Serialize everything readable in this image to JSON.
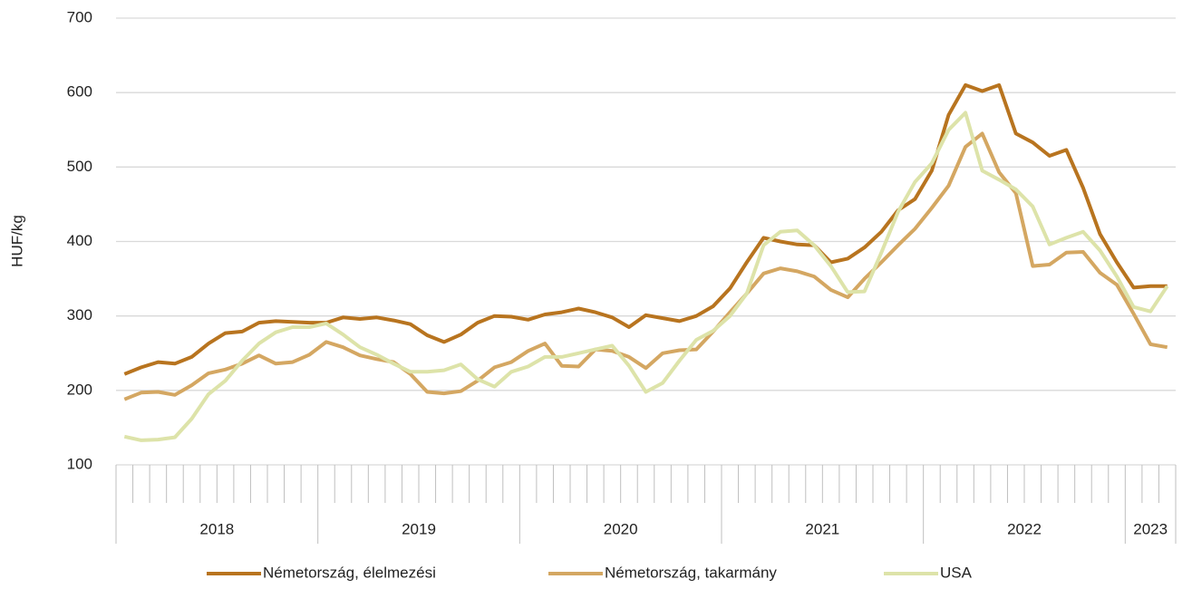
{
  "chart_data": {
    "type": "line",
    "y_label": "HUF/kg",
    "categories": [
      "2018",
      null,
      null,
      null,
      null,
      null,
      null,
      null,
      null,
      null,
      null,
      null,
      "2019",
      null,
      null,
      null,
      null,
      null,
      null,
      null,
      null,
      null,
      null,
      null,
      "2020",
      null,
      null,
      null,
      null,
      null,
      null,
      null,
      null,
      null,
      null,
      null,
      "2021",
      null,
      null,
      null,
      null,
      null,
      null,
      null,
      null,
      null,
      null,
      null,
      "2022",
      null,
      null,
      null,
      null,
      null,
      null,
      null,
      null,
      null,
      null,
      null,
      "2023",
      null,
      null
    ],
    "ylim": [
      100,
      700
    ],
    "yticks": [
      100,
      200,
      300,
      400,
      500,
      600,
      700
    ],
    "grid": true,
    "legend": "bottom",
    "series": [
      {
        "name": "Németország, élelmezési",
        "color": "#b8741f",
        "values": [
          222,
          231,
          238,
          236,
          245,
          263,
          277,
          279,
          291,
          293,
          292,
          291,
          291,
          298,
          296,
          298,
          294,
          289,
          274,
          265,
          275,
          291,
          300,
          299,
          295,
          302,
          305,
          310,
          305,
          298,
          285,
          301,
          297,
          293,
          300,
          313,
          337,
          372,
          405,
          400,
          396,
          395,
          372,
          377,
          392,
          413,
          442,
          457,
          495,
          570,
          610,
          602,
          610,
          545,
          533,
          515,
          523,
          472,
          410,
          372,
          338,
          340,
          340
        ]
      },
      {
        "name": "Németország, takarmány",
        "color": "#d4a762",
        "values": [
          188,
          197,
          198,
          194,
          207,
          223,
          228,
          236,
          247,
          236,
          238,
          248,
          265,
          258,
          247,
          242,
          238,
          222,
          198,
          196,
          199,
          213,
          231,
          238,
          253,
          263,
          233,
          232,
          255,
          253,
          245,
          230,
          250,
          254,
          255,
          279,
          305,
          330,
          357,
          364,
          360,
          353,
          335,
          325,
          350,
          372,
          395,
          417,
          445,
          475,
          527,
          545,
          493,
          465,
          367,
          369,
          385,
          386,
          358,
          342,
          303,
          262,
          258
        ]
      },
      {
        "name": "USA",
        "color": "#dde3a9",
        "values": [
          138,
          133,
          134,
          137,
          162,
          195,
          213,
          240,
          263,
          278,
          285,
          285,
          290,
          275,
          258,
          248,
          236,
          225,
          225,
          227,
          235,
          215,
          205,
          225,
          232,
          245,
          245,
          250,
          255,
          260,
          233,
          198,
          210,
          240,
          268,
          280,
          300,
          330,
          395,
          413,
          415,
          395,
          367,
          332,
          333,
          385,
          440,
          480,
          505,
          550,
          573,
          495,
          483,
          470,
          447,
          396,
          405,
          413,
          388,
          353,
          312,
          306,
          340
        ]
      }
    ]
  }
}
